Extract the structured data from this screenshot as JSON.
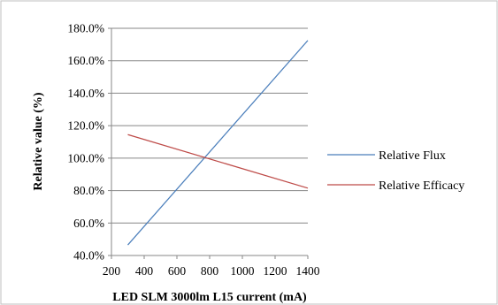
{
  "chart_data": {
    "type": "line",
    "title": "",
    "xlabel": "LED SLM 3000lm L15 current (mA)",
    "ylabel": "Relative value (%)",
    "xlim": [
      200,
      1400
    ],
    "ylim": [
      40,
      180
    ],
    "x_ticks": [
      200,
      400,
      600,
      800,
      1000,
      1200,
      1400
    ],
    "x_tick_labels": [
      "200",
      "400",
      "600",
      "800",
      "1000",
      "1200",
      "1400"
    ],
    "y_ticks": [
      40,
      60,
      80,
      100,
      120,
      140,
      160,
      180
    ],
    "y_tick_labels": [
      "40.0%",
      "60.0%",
      "80.0%",
      "100.0%",
      "120.0%",
      "140.0%",
      "160.0%",
      "180.0%"
    ],
    "grid": {
      "horizontal": true,
      "vertical": false
    },
    "legend": {
      "position": "right"
    },
    "series": [
      {
        "name": "Relative Flux",
        "color": "#4a7ebb",
        "x": [
          300,
          1400
        ],
        "y": [
          46.5,
          172.5
        ]
      },
      {
        "name": "Relative Efficacy",
        "color": "#be4b48",
        "x": [
          300,
          1400
        ],
        "y": [
          114.5,
          81.5
        ]
      }
    ]
  }
}
